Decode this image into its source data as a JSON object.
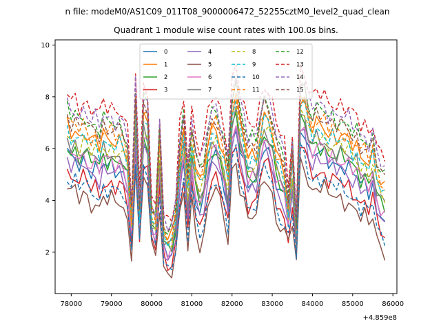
{
  "chart_data": {
    "type": "line",
    "suptitle": "n file: modeM0/AS1C09_011T08_9000006472_52255cztM0_level2_quad_clean",
    "title": "Quadrant 1 module wise count rates with 100.0s bins.",
    "xlabel": "",
    "ylabel": "",
    "x_offset_label": "+4.859e8",
    "xlim": [
      77600,
      86100
    ],
    "ylim": [
      0.4,
      10.2
    ],
    "xticks": [
      78000,
      79000,
      80000,
      81000,
      82000,
      83000,
      84000,
      85000,
      86000
    ],
    "yticks": [
      2,
      4,
      6,
      8,
      10
    ],
    "grid": false,
    "legend_position": "top-center",
    "x_start": 77900,
    "x_step": 100,
    "base_profile": [
      5.6,
      5.2,
      5.4,
      5.0,
      5.3,
      5.1,
      4.8,
      5.0,
      4.6,
      5.2,
      4.9,
      5.1,
      4.8,
      5.0,
      4.7,
      4.2,
      2.5,
      6.3,
      2.8,
      5.9,
      5.6,
      2.7,
      2.4,
      4.8,
      2.0,
      1.7,
      1.8,
      2.6,
      4.3,
      5.3,
      3.1,
      5.0,
      3.8,
      3.3,
      3.7,
      4.7,
      5.3,
      5.4,
      4.9,
      4.3,
      3.4,
      6.1,
      6.6,
      5.5,
      5.0,
      4.2,
      4.4,
      4.3,
      5.3,
      5.9,
      5.7,
      5.2,
      4.3,
      4.0,
      3.7,
      2.9,
      4.1,
      2.1,
      6.5,
      6.4,
      5.7,
      5.3,
      5.6,
      5.4,
      5.5,
      5.1,
      5.3,
      5.0,
      5.2,
      4.9,
      5.0,
      4.6,
      4.7,
      4.2,
      4.4,
      4.0,
      4.5,
      3.6,
      3.2,
      3.0
    ],
    "series": [
      {
        "name": "0",
        "color": "#1f77b4",
        "dashed": false,
        "offset": 0.3
      },
      {
        "name": "1",
        "color": "#ff7f0e",
        "dashed": false,
        "offset": 1.4
      },
      {
        "name": "2",
        "color": "#2ca02c",
        "dashed": false,
        "offset": 0.6
      },
      {
        "name": "3",
        "color": "#d62728",
        "dashed": false,
        "offset": -0.4
      },
      {
        "name": "4",
        "color": "#9467bd",
        "dashed": false,
        "offset": 0.1
      },
      {
        "name": "5",
        "color": "#8c564b",
        "dashed": false,
        "offset": -1.0
      },
      {
        "name": "6",
        "color": "#e377c2",
        "dashed": false,
        "offset": 0.5
      },
      {
        "name": "7",
        "color": "#7f7f7f",
        "dashed": false,
        "offset": 0.8
      },
      {
        "name": "8",
        "color": "#bcbd22",
        "dashed": true,
        "offset": 1.0
      },
      {
        "name": "9",
        "color": "#17becf",
        "dashed": true,
        "offset": 1.2
      },
      {
        "name": "10",
        "color": "#1f77b4",
        "dashed": true,
        "offset": -0.6
      },
      {
        "name": "11",
        "color": "#ff7f0e",
        "dashed": true,
        "offset": 1.6
      },
      {
        "name": "12",
        "color": "#2ca02c",
        "dashed": true,
        "offset": 2.0
      },
      {
        "name": "13",
        "color": "#d62728",
        "dashed": true,
        "offset": 2.6
      },
      {
        "name": "14",
        "color": "#9467bd",
        "dashed": true,
        "offset": 2.2
      },
      {
        "name": "15",
        "color": "#8c564b",
        "dashed": true,
        "offset": 1.8
      }
    ]
  }
}
